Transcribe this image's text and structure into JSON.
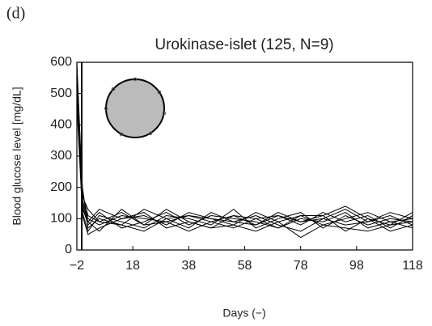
{
  "panel_label": "(d)",
  "chart_data": {
    "type": "line",
    "title": "Urokinase-islet (125, N=9)",
    "xlabel": "Days (−)",
    "ylabel": "Blood glucose level [mg/dL]",
    "x": [
      -2,
      0,
      2,
      6,
      14,
      22,
      30,
      38,
      46,
      54,
      62,
      70,
      78,
      86,
      94,
      102,
      110,
      118
    ],
    "series": [
      {
        "color": "#000000",
        "values": [
          600,
          180,
          110,
          90,
          120,
          80,
          130,
          90,
          70,
          110,
          80,
          120,
          90,
          110,
          140,
          100,
          80,
          120
        ]
      },
      {
        "color": "#000000",
        "values": [
          560,
          150,
          90,
          130,
          100,
          110,
          80,
          120,
          100,
          80,
          120,
          90,
          110,
          80,
          100,
          120,
          90,
          100
        ]
      },
      {
        "color": "#000000",
        "values": [
          520,
          200,
          70,
          100,
          80,
          130,
          100,
          70,
          120,
          90,
          110,
          80,
          60,
          100,
          80,
          90,
          110,
          80
        ]
      },
      {
        "color": "#000000",
        "values": [
          580,
          120,
          60,
          110,
          90,
          70,
          110,
          100,
          80,
          130,
          70,
          100,
          120,
          70,
          110,
          80,
          100,
          90
        ]
      },
      {
        "color": "#000000",
        "values": [
          500,
          160,
          100,
          80,
          110,
          100,
          90,
          110,
          90,
          70,
          100,
          110,
          80,
          120,
          90,
          110,
          70,
          110
        ]
      },
      {
        "color": "#000000",
        "values": [
          540,
          140,
          80,
          120,
          70,
          90,
          120,
          80,
          110,
          100,
          90,
          70,
          100,
          90,
          120,
          70,
          90,
          70
        ]
      },
      {
        "color": "#000000",
        "values": [
          470,
          110,
          50,
          70,
          100,
          120,
          70,
          90,
          70,
          80,
          60,
          90,
          40,
          80,
          70,
          60,
          80,
          90
        ]
      },
      {
        "color": "#000000",
        "values": [
          590,
          170,
          130,
          90,
          80,
          60,
          100,
          110,
          100,
          90,
          80,
          110,
          90,
          100,
          130,
          90,
          120,
          100
        ]
      },
      {
        "color": "#000000",
        "values": [
          530,
          130,
          90,
          60,
          130,
          80,
          90,
          60,
          90,
          110,
          100,
          70,
          110,
          110,
          60,
          100,
          60,
          80
        ]
      }
    ],
    "xlim": [
      -2,
      118
    ],
    "xticks": [
      {
        "value": -2,
        "label": "−2"
      },
      18,
      38,
      58,
      78,
      98,
      118
    ],
    "ylim": [
      0,
      600
    ],
    "yticks": [
      0,
      100,
      200,
      300,
      400,
      500,
      600
    ],
    "grid": false
  }
}
